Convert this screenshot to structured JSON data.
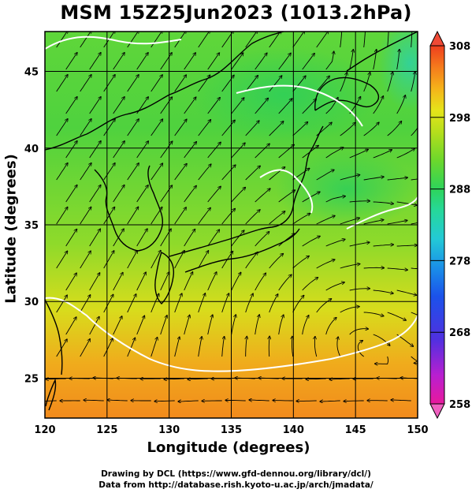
{
  "figure": {
    "title": "MSM 15Z25Jun2023 (1013.2hPa)",
    "xlabel": "Longitude (degrees)",
    "ylabel": "Latitude  (degrees)",
    "credit_line1": "Drawing by DCL (https://www.gfd-dennou.org/library/dcl/)",
    "credit_line2": "Data from http://database.rish.kyoto-u.ac.jp/arch/jmadata/"
  },
  "map": {
    "lon_range": [
      120,
      150
    ],
    "lat_range": [
      22.4,
      47.6
    ],
    "x_ticks": [
      "120",
      "125",
      "130",
      "135",
      "140",
      "145",
      "150"
    ],
    "y_ticks": [
      "25",
      "30",
      "35",
      "40",
      "45"
    ],
    "grid": true
  },
  "colorbar": {
    "min": 258,
    "max": 308,
    "tick_labels": [
      "308",
      "298",
      "288",
      "278",
      "268",
      "258"
    ],
    "colors": [
      "#e8199c",
      "#b81fd0",
      "#5030e0",
      "#1b52ea",
      "#1a8fe8",
      "#23c9d6",
      "#26d89a",
      "#2ed45a",
      "#6cd72c",
      "#b6df1c",
      "#e6e41a",
      "#f5b31a",
      "#f57b1c",
      "#ef3f1e"
    ]
  }
}
